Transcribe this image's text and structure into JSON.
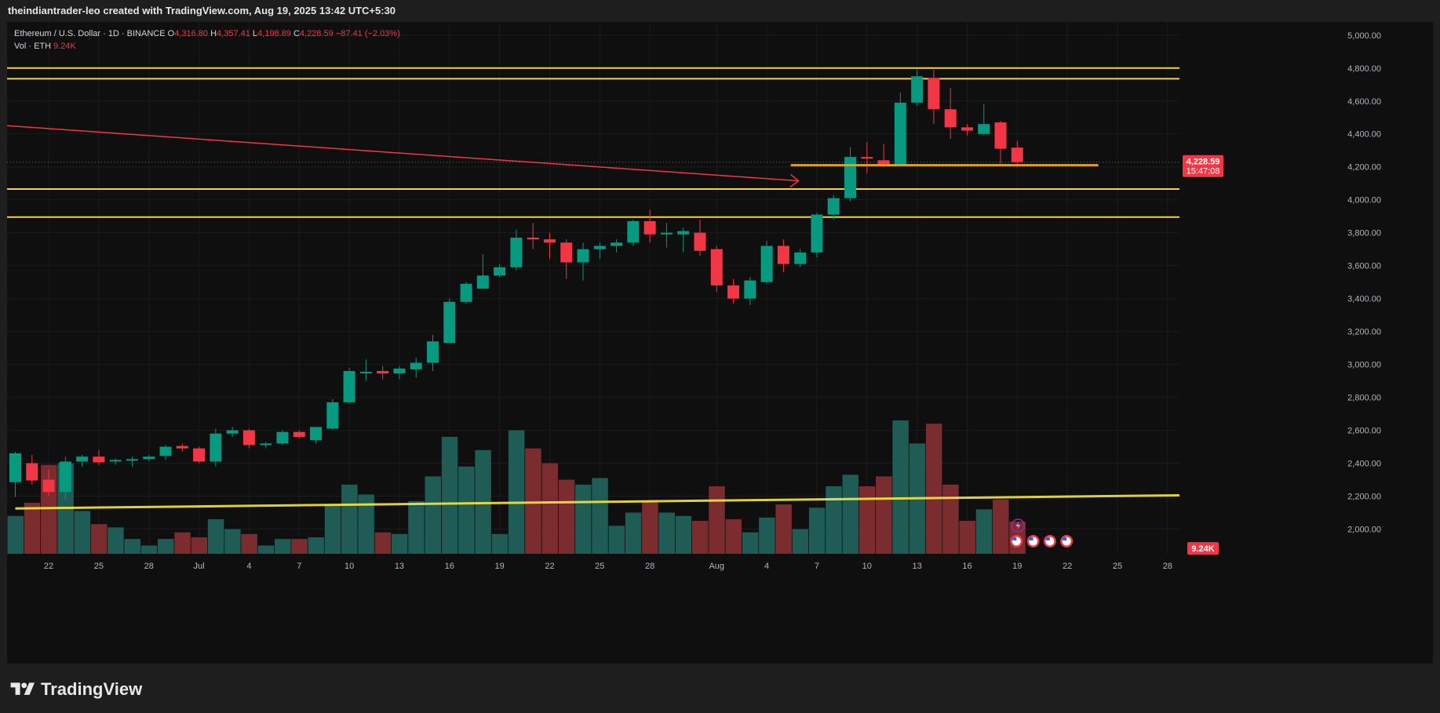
{
  "header": {
    "attribution": "theindiantrader-leo created with TradingView.com, Aug 19, 2025 13:42 UTC+5:30"
  },
  "legend": {
    "symbol": "Ethereum / U.S. Dollar · 1D · BINANCE",
    "o_label": "O",
    "o_value": "4,316.80",
    "h_label": "H",
    "h_value": "4,357.41",
    "l_label": "L",
    "l_value": "4,198.89",
    "c_label": "C",
    "c_value": "4,228.59",
    "change": "−87.41 (−2.03%)",
    "vol_label": "Vol · ETH",
    "vol_value": "9.24K"
  },
  "footer": {
    "brand": "TradingView"
  },
  "colors": {
    "bg": "#0f0f0f",
    "up": "#089981",
    "down": "#f23645",
    "vol_up": "#1e5c55",
    "vol_down": "#7a2c2e",
    "level_line": "#f5d142",
    "support_line": "#ff9800",
    "trend_arrow": "#f23645"
  },
  "chart_data": {
    "type": "candlestick",
    "title": "Ethereum / U.S. Dollar · 1D · BINANCE",
    "ylim": [
      1850,
      5080
    ],
    "y_ticks": [
      "5,000.00",
      "4,800.00",
      "4,600.00",
      "4,400.00",
      "4,200.00",
      "4,000.00",
      "3,800.00",
      "3,600.00",
      "3,400.00",
      "3,200.00",
      "3,000.00",
      "2,800.00",
      "2,600.00",
      "2,400.00",
      "2,200.00",
      "2,000.00"
    ],
    "y_tick_values": [
      5000,
      4800,
      4600,
      4400,
      4200,
      4000,
      3800,
      3600,
      3400,
      3200,
      3000,
      2800,
      2600,
      2400,
      2200,
      2000
    ],
    "x_ticks": [
      {
        "label": "22",
        "i": 2
      },
      {
        "label": "25",
        "i": 5
      },
      {
        "label": "28",
        "i": 8
      },
      {
        "label": "Jul",
        "i": 11
      },
      {
        "label": "4",
        "i": 14
      },
      {
        "label": "7",
        "i": 17
      },
      {
        "label": "10",
        "i": 20
      },
      {
        "label": "13",
        "i": 23
      },
      {
        "label": "16",
        "i": 26
      },
      {
        "label": "19",
        "i": 29
      },
      {
        "label": "22",
        "i": 32
      },
      {
        "label": "25",
        "i": 35
      },
      {
        "label": "28",
        "i": 38
      },
      {
        "label": "Aug",
        "i": 42
      },
      {
        "label": "4",
        "i": 45
      },
      {
        "label": "7",
        "i": 48
      },
      {
        "label": "10",
        "i": 51
      },
      {
        "label": "13",
        "i": 54
      },
      {
        "label": "16",
        "i": 57
      },
      {
        "label": "19",
        "i": 60
      },
      {
        "label": "22",
        "i": 63
      },
      {
        "label": "25",
        "i": 66
      },
      {
        "label": "28",
        "i": 69
      }
    ],
    "last_price_label": "4,228.59",
    "countdown_label": "15:47:08",
    "volume_label": "9.24K",
    "horizontal_levels": [
      4800,
      4735,
      4065,
      3895
    ],
    "support_level": {
      "price": 4210,
      "from_index": 47,
      "to_index": 65
    },
    "trend_arrow": {
      "from": [
        0,
        4450
      ],
      "to": [
        47,
        4115
      ]
    },
    "volume_trendline": {
      "from": [
        0,
        2125
      ],
      "to": [
        70.5,
        2205
      ]
    },
    "ohlc": [
      [
        2285,
        2470,
        2195,
        2460
      ],
      [
        2400,
        2450,
        2270,
        2295
      ],
      [
        2300,
        2360,
        2200,
        2225
      ],
      [
        2225,
        2440,
        2180,
        2410
      ],
      [
        2410,
        2450,
        2380,
        2440
      ],
      [
        2440,
        2480,
        2390,
        2405
      ],
      [
        2410,
        2430,
        2390,
        2420
      ],
      [
        2420,
        2440,
        2380,
        2425
      ],
      [
        2425,
        2450,
        2410,
        2440
      ],
      [
        2445,
        2510,
        2420,
        2500
      ],
      [
        2505,
        2520,
        2470,
        2490
      ],
      [
        2490,
        2500,
        2400,
        2410
      ],
      [
        2410,
        2610,
        2380,
        2580
      ],
      [
        2580,
        2620,
        2560,
        2600
      ],
      [
        2600,
        2610,
        2490,
        2510
      ],
      [
        2510,
        2530,
        2490,
        2520
      ],
      [
        2520,
        2600,
        2510,
        2590
      ],
      [
        2590,
        2600,
        2550,
        2560
      ],
      [
        2540,
        2620,
        2520,
        2620
      ],
      [
        2610,
        2790,
        2600,
        2770
      ],
      [
        2770,
        2980,
        2760,
        2960
      ],
      [
        2950,
        3030,
        2900,
        2955
      ],
      [
        2960,
        2990,
        2910,
        2945
      ],
      [
        2945,
        2990,
        2910,
        2975
      ],
      [
        2970,
        3040,
        2920,
        3010
      ],
      [
        3010,
        3180,
        2960,
        3140
      ],
      [
        3130,
        3400,
        3130,
        3380
      ],
      [
        3380,
        3500,
        3370,
        3490
      ],
      [
        3460,
        3670,
        3460,
        3540
      ],
      [
        3540,
        3610,
        3530,
        3590
      ],
      [
        3590,
        3820,
        3570,
        3770
      ],
      [
        3770,
        3860,
        3700,
        3760
      ],
      [
        3760,
        3800,
        3640,
        3740
      ],
      [
        3740,
        3760,
        3520,
        3620
      ],
      [
        3620,
        3740,
        3510,
        3700
      ],
      [
        3700,
        3740,
        3640,
        3720
      ],
      [
        3720,
        3760,
        3680,
        3740
      ],
      [
        3740,
        3880,
        3720,
        3870
      ],
      [
        3870,
        3940,
        3740,
        3790
      ],
      [
        3790,
        3860,
        3710,
        3800
      ],
      [
        3790,
        3830,
        3680,
        3810
      ],
      [
        3800,
        3880,
        3660,
        3690
      ],
      [
        3700,
        3720,
        3440,
        3480
      ],
      [
        3480,
        3520,
        3370,
        3400
      ],
      [
        3400,
        3530,
        3360,
        3510
      ],
      [
        3500,
        3750,
        3490,
        3720
      ],
      [
        3720,
        3760,
        3560,
        3610
      ],
      [
        3610,
        3700,
        3590,
        3680
      ],
      [
        3680,
        3920,
        3650,
        3910
      ],
      [
        3910,
        4030,
        3880,
        4010
      ],
      [
        4010,
        4320,
        3990,
        4260
      ],
      [
        4260,
        4350,
        4160,
        4250
      ],
      [
        4240,
        4340,
        4200,
        4210
      ],
      [
        4210,
        4650,
        4210,
        4590
      ],
      [
        4590,
        4790,
        4570,
        4750
      ],
      [
        4740,
        4790,
        4460,
        4550
      ],
      [
        4550,
        4680,
        4370,
        4440
      ],
      [
        4440,
        4460,
        4390,
        4420
      ],
      [
        4400,
        4580,
        4390,
        4460
      ],
      [
        4470,
        4480,
        4220,
        4310
      ],
      [
        4316.8,
        4357.41,
        4198.89,
        4228.59
      ]
    ],
    "volume_y_range": [
      1990,
      2670
    ],
    "volume": [
      2080,
      2160,
      2390,
      2400,
      2110,
      2030,
      2010,
      1940,
      1900,
      1940,
      1980,
      1950,
      2060,
      2000,
      1970,
      1900,
      1940,
      1940,
      1950,
      2150,
      2270,
      2210,
      1980,
      1970,
      2170,
      2320,
      2560,
      2380,
      2480,
      1970,
      2600,
      2490,
      2400,
      2300,
      2270,
      2310,
      2020,
      2100,
      2170,
      2100,
      2080,
      2050,
      2260,
      2060,
      1980,
      2070,
      2150,
      2000,
      2130,
      2260,
      2330,
      2260,
      2320,
      2660,
      2520,
      2640,
      2270,
      2050,
      2120,
      2180,
      2045
    ]
  }
}
